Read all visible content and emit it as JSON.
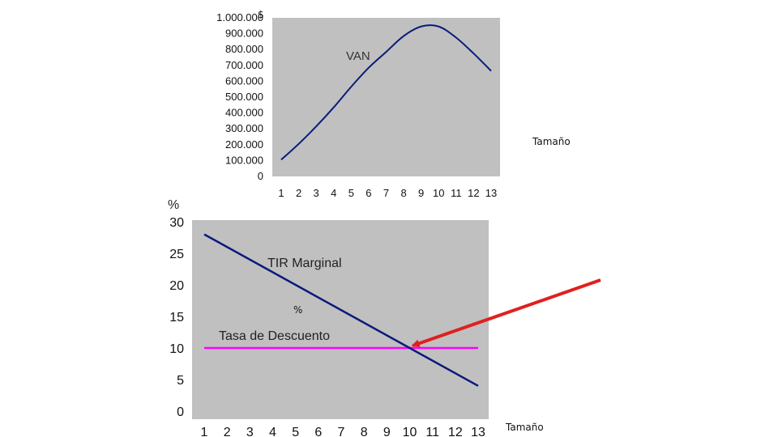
{
  "chart_data": [
    {
      "type": "line",
      "unit_symbol": "$",
      "series": [
        {
          "name": "VAN",
          "color": "#0a1a7a",
          "x": [
            1,
            2,
            3,
            4,
            5,
            6,
            7,
            8,
            9,
            10,
            11,
            12,
            13
          ],
          "values": [
            100000,
            200000,
            310000,
            430000,
            560000,
            680000,
            780000,
            880000,
            940000,
            940000,
            870000,
            770000,
            660000
          ]
        }
      ],
      "categories": [
        "1",
        "2",
        "3",
        "4",
        "5",
        "6",
        "7",
        "8",
        "9",
        "10",
        "11",
        "12",
        "13"
      ],
      "yticks": [
        0,
        100000,
        200000,
        300000,
        400000,
        500000,
        600000,
        700000,
        800000,
        900000,
        1000000
      ],
      "ytick_labels": [
        "0",
        "100.000",
        "200.000",
        "300.000",
        "400.000",
        "500.000",
        "600.000",
        "700.000",
        "800.000",
        "900.000",
        "1.000.000"
      ],
      "ylim": [
        0,
        1000000
      ],
      "xlabel": "Tamaño",
      "series_label": "VAN",
      "plot_bg": "#c0c0c0"
    },
    {
      "type": "line",
      "unit_symbol": "%",
      "series": [
        {
          "name": "TIR Marginal",
          "color": "#0a1a7a",
          "x": [
            1,
            13
          ],
          "values": [
            28,
            4
          ]
        },
        {
          "name": "Tasa de Descuento",
          "color": "#ff00ff",
          "x": [
            1,
            13
          ],
          "values": [
            10,
            10
          ]
        }
      ],
      "categories": [
        "1",
        "2",
        "3",
        "4",
        "5",
        "6",
        "7",
        "8",
        "9",
        "10",
        "11",
        "12",
        "13"
      ],
      "yticks": [
        0,
        5,
        10,
        15,
        20,
        25,
        30
      ],
      "ytick_labels": [
        "0",
        "5",
        "10",
        "15",
        "20",
        "25",
        "30"
      ],
      "ylim": [
        0,
        30
      ],
      "xlabel": "Tamaño",
      "inner_label": "%",
      "annotation": {
        "type": "arrow",
        "color": "#e02020",
        "points_to": {
          "x": 10,
          "y": 10
        }
      },
      "plot_bg": "#c0c0c0"
    }
  ]
}
